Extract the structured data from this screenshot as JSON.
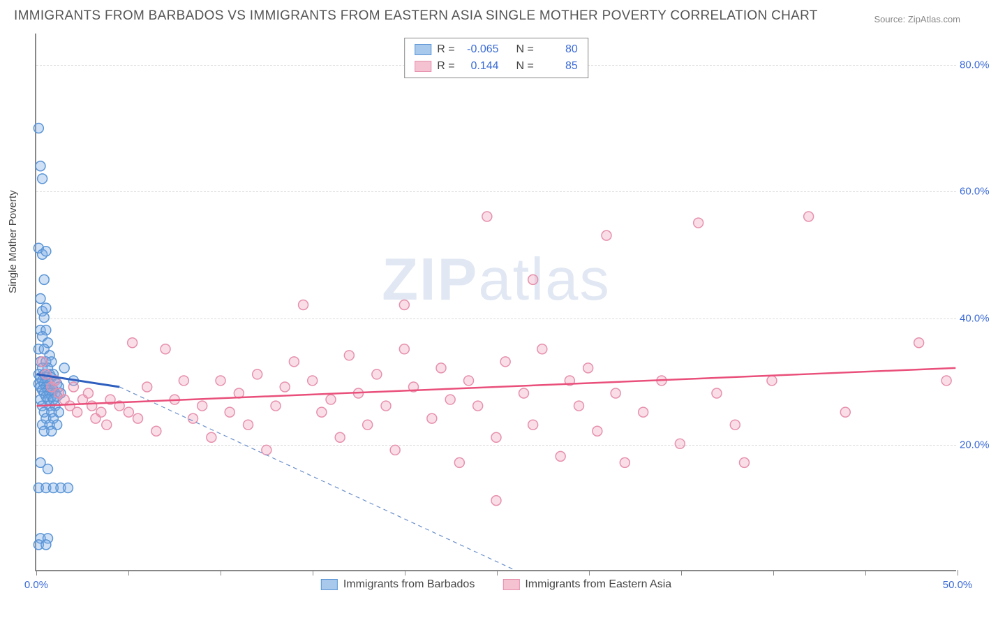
{
  "title": "IMMIGRANTS FROM BARBADOS VS IMMIGRANTS FROM EASTERN ASIA SINGLE MOTHER POVERTY CORRELATION CHART",
  "source": "Source: ZipAtlas.com",
  "ylabel": "Single Mother Poverty",
  "watermark_bold": "ZIP",
  "watermark_rest": "atlas",
  "chart": {
    "type": "scatter",
    "xlim": [
      0,
      50
    ],
    "ylim": [
      0,
      85
    ],
    "xtick_positions": [
      0,
      5,
      10,
      15,
      20,
      25,
      30,
      35,
      40,
      45,
      50
    ],
    "xtick_labels": {
      "0": "0.0%",
      "50": "50.0%"
    },
    "ytick_positions": [
      20,
      40,
      60,
      80
    ],
    "ytick_labels": {
      "20": "20.0%",
      "40": "40.0%",
      "60": "60.0%",
      "80": "80.0%"
    },
    "background_color": "#ffffff",
    "grid_color": "#dcdcdc",
    "axis_color": "#888888",
    "marker_radius": 7,
    "marker_stroke_width": 1.5,
    "series": [
      {
        "name": "Immigrants from Barbados",
        "color_fill": "rgba(120,170,230,0.35)",
        "color_stroke": "#5a95d6",
        "swatch_fill": "#a9c9ec",
        "swatch_stroke": "#5a95d6",
        "r_value": "-0.065",
        "n_value": "80",
        "trend": {
          "x1": 0,
          "y1": 31,
          "x2": 4.5,
          "y2": 29,
          "color": "#2e5fbf",
          "width": 3
        },
        "trend_ext": {
          "x1": 4.5,
          "y1": 29,
          "x2": 26,
          "y2": 0,
          "color": "#6a8fc9",
          "dash": "6,5",
          "width": 1.2
        },
        "points": [
          [
            0.1,
            70
          ],
          [
            0.2,
            64
          ],
          [
            0.3,
            62
          ],
          [
            0.1,
            51
          ],
          [
            0.3,
            50
          ],
          [
            0.5,
            50.5
          ],
          [
            0.4,
            46
          ],
          [
            0.2,
            43
          ],
          [
            0.3,
            41
          ],
          [
            0.5,
            41.5
          ],
          [
            0.4,
            40
          ],
          [
            0.2,
            38
          ],
          [
            0.5,
            38
          ],
          [
            0.3,
            37
          ],
          [
            0.6,
            36
          ],
          [
            0.1,
            35
          ],
          [
            0.4,
            35
          ],
          [
            0.7,
            34
          ],
          [
            0.2,
            33
          ],
          [
            0.5,
            33
          ],
          [
            0.8,
            33
          ],
          [
            0.3,
            32
          ],
          [
            0.6,
            32
          ],
          [
            0.1,
            31
          ],
          [
            0.4,
            31
          ],
          [
            0.7,
            31
          ],
          [
            0.9,
            31
          ],
          [
            0.2,
            30.5
          ],
          [
            0.5,
            30.5
          ],
          [
            0.8,
            30.5
          ],
          [
            0.3,
            30
          ],
          [
            0.6,
            30
          ],
          [
            1.0,
            30
          ],
          [
            0.1,
            29.5
          ],
          [
            0.4,
            29.5
          ],
          [
            0.7,
            29.5
          ],
          [
            1.1,
            29.5
          ],
          [
            0.2,
            29
          ],
          [
            0.5,
            29
          ],
          [
            0.8,
            29
          ],
          [
            1.2,
            29
          ],
          [
            0.3,
            28.5
          ],
          [
            0.6,
            28.5
          ],
          [
            0.9,
            28.5
          ],
          [
            0.4,
            28
          ],
          [
            0.7,
            28
          ],
          [
            1.0,
            28
          ],
          [
            1.3,
            28
          ],
          [
            0.5,
            27.5
          ],
          [
            0.8,
            27.5
          ],
          [
            1.1,
            27.5
          ],
          [
            0.2,
            27
          ],
          [
            0.6,
            27
          ],
          [
            0.9,
            27
          ],
          [
            0.3,
            26
          ],
          [
            0.7,
            26
          ],
          [
            1.0,
            26
          ],
          [
            0.4,
            25
          ],
          [
            0.8,
            25
          ],
          [
            1.2,
            25
          ],
          [
            0.5,
            24
          ],
          [
            0.9,
            24
          ],
          [
            0.3,
            23
          ],
          [
            0.7,
            23
          ],
          [
            1.1,
            23
          ],
          [
            0.4,
            22
          ],
          [
            0.8,
            22
          ],
          [
            0.2,
            17
          ],
          [
            0.6,
            16
          ],
          [
            0.1,
            13
          ],
          [
            0.5,
            13
          ],
          [
            0.9,
            13
          ],
          [
            1.3,
            13
          ],
          [
            1.7,
            13
          ],
          [
            0.2,
            5
          ],
          [
            0.6,
            5
          ],
          [
            0.1,
            4
          ],
          [
            0.5,
            4
          ],
          [
            1.5,
            32
          ],
          [
            2.0,
            30
          ]
        ]
      },
      {
        "name": "Immigrants from Eastern Asia",
        "color_fill": "rgba(240,160,185,0.35)",
        "color_stroke": "#e690ac",
        "swatch_fill": "#f5c2d2",
        "swatch_stroke": "#e690ac",
        "r_value": "0.144",
        "n_value": "85",
        "trend": {
          "x1": 0,
          "y1": 26,
          "x2": 50,
          "y2": 32,
          "color": "#e94f7a",
          "width": 2.5
        },
        "points": [
          [
            0.3,
            33
          ],
          [
            0.5,
            31
          ],
          [
            0.8,
            29
          ],
          [
            1.0,
            30
          ],
          [
            1.2,
            28
          ],
          [
            1.5,
            27
          ],
          [
            1.8,
            26
          ],
          [
            2.0,
            29
          ],
          [
            2.2,
            25
          ],
          [
            2.5,
            27
          ],
          [
            2.8,
            28
          ],
          [
            3.0,
            26
          ],
          [
            3.2,
            24
          ],
          [
            3.5,
            25
          ],
          [
            3.8,
            23
          ],
          [
            4.0,
            27
          ],
          [
            4.5,
            26
          ],
          [
            5.0,
            25
          ],
          [
            5.2,
            36
          ],
          [
            5.5,
            24
          ],
          [
            6.0,
            29
          ],
          [
            6.5,
            22
          ],
          [
            7.0,
            35
          ],
          [
            7.5,
            27
          ],
          [
            8.0,
            30
          ],
          [
            8.5,
            24
          ],
          [
            9.0,
            26
          ],
          [
            9.5,
            21
          ],
          [
            10.0,
            30
          ],
          [
            10.5,
            25
          ],
          [
            11.0,
            28
          ],
          [
            11.5,
            23
          ],
          [
            12.0,
            31
          ],
          [
            12.5,
            19
          ],
          [
            13.0,
            26
          ],
          [
            13.5,
            29
          ],
          [
            14.0,
            33
          ],
          [
            14.5,
            42
          ],
          [
            15.0,
            30
          ],
          [
            15.5,
            25
          ],
          [
            16.0,
            27
          ],
          [
            16.5,
            21
          ],
          [
            17.0,
            34
          ],
          [
            17.5,
            28
          ],
          [
            18.0,
            23
          ],
          [
            18.5,
            31
          ],
          [
            19.0,
            26
          ],
          [
            19.5,
            19
          ],
          [
            20.0,
            35
          ],
          [
            20.5,
            29
          ],
          [
            20.0,
            42
          ],
          [
            21.5,
            24
          ],
          [
            22.0,
            32
          ],
          [
            22.5,
            27
          ],
          [
            23.0,
            17
          ],
          [
            23.5,
            30
          ],
          [
            24.0,
            26
          ],
          [
            24.5,
            56
          ],
          [
            25.0,
            21
          ],
          [
            25.5,
            33
          ],
          [
            25.0,
            11
          ],
          [
            26.5,
            28
          ],
          [
            27.0,
            23
          ],
          [
            27.5,
            35
          ],
          [
            27.0,
            46
          ],
          [
            28.5,
            18
          ],
          [
            29.0,
            30
          ],
          [
            29.5,
            26
          ],
          [
            30.0,
            32
          ],
          [
            30.5,
            22
          ],
          [
            31.0,
            53
          ],
          [
            31.5,
            28
          ],
          [
            32.0,
            17
          ],
          [
            33.0,
            25
          ],
          [
            34.0,
            30
          ],
          [
            35.0,
            20
          ],
          [
            36.0,
            55
          ],
          [
            37.0,
            28
          ],
          [
            38.0,
            23
          ],
          [
            38.5,
            17
          ],
          [
            40.0,
            30
          ],
          [
            42.0,
            56
          ],
          [
            44.0,
            25
          ],
          [
            48.0,
            36
          ],
          [
            49.5,
            30
          ]
        ]
      }
    ]
  },
  "legend_labels": {
    "r": "R =",
    "n": "N ="
  }
}
